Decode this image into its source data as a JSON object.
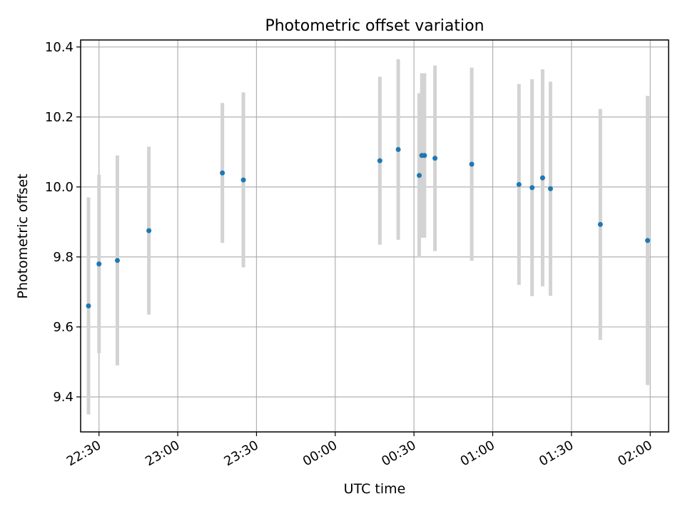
{
  "chart_data": {
    "type": "scatter",
    "title": "Photometric offset variation",
    "xlabel": "UTC time",
    "ylabel": "Photometric offset",
    "xlim": [
      "22:23",
      "02:07"
    ],
    "ylim": [
      9.3,
      10.42
    ],
    "x_ticks": [
      "22:30",
      "23:00",
      "23:30",
      "00:00",
      "00:30",
      "01:00",
      "01:30",
      "02:00"
    ],
    "y_ticks": [
      "9.4",
      "9.6",
      "9.8",
      "10.0",
      "10.2",
      "10.4"
    ],
    "grid": true,
    "series": [
      {
        "marker_color": "#1f77b4",
        "errorbar_color": "#d3d3d3",
        "points": [
          {
            "x": "22:26",
            "y": 9.66,
            "yerr": 0.31
          },
          {
            "x": "22:30",
            "y": 9.78,
            "yerr": 0.255
          },
          {
            "x": "22:37",
            "y": 9.79,
            "yerr": 0.3
          },
          {
            "x": "22:49",
            "y": 9.875,
            "yerr": 0.24
          },
          {
            "x": "23:17",
            "y": 10.04,
            "yerr": 0.2
          },
          {
            "x": "23:25",
            "y": 10.02,
            "yerr": 0.25
          },
          {
            "x": "00:17",
            "y": 10.075,
            "yerr": 0.24
          },
          {
            "x": "00:24",
            "y": 10.107,
            "yerr": 0.258
          },
          {
            "x": "00:32",
            "y": 10.033,
            "yerr": 0.235
          },
          {
            "x": "00:33",
            "y": 10.09,
            "yerr": 0.235
          },
          {
            "x": "00:34",
            "y": 10.09,
            "yerr": 0.235
          },
          {
            "x": "00:38",
            "y": 10.082,
            "yerr": 0.265
          },
          {
            "x": "00:52",
            "y": 10.065,
            "yerr": 0.276
          },
          {
            "x": "01:10",
            "y": 10.007,
            "yerr": 0.287
          },
          {
            "x": "01:15",
            "y": 9.998,
            "yerr": 0.31
          },
          {
            "x": "01:19",
            "y": 10.026,
            "yerr": 0.31
          },
          {
            "x": "01:22",
            "y": 9.995,
            "yerr": 0.306
          },
          {
            "x": "01:41",
            "y": 9.893,
            "yerr": 0.33
          },
          {
            "x": "01:59",
            "y": 9.847,
            "yerr": 0.413
          }
        ]
      }
    ]
  }
}
